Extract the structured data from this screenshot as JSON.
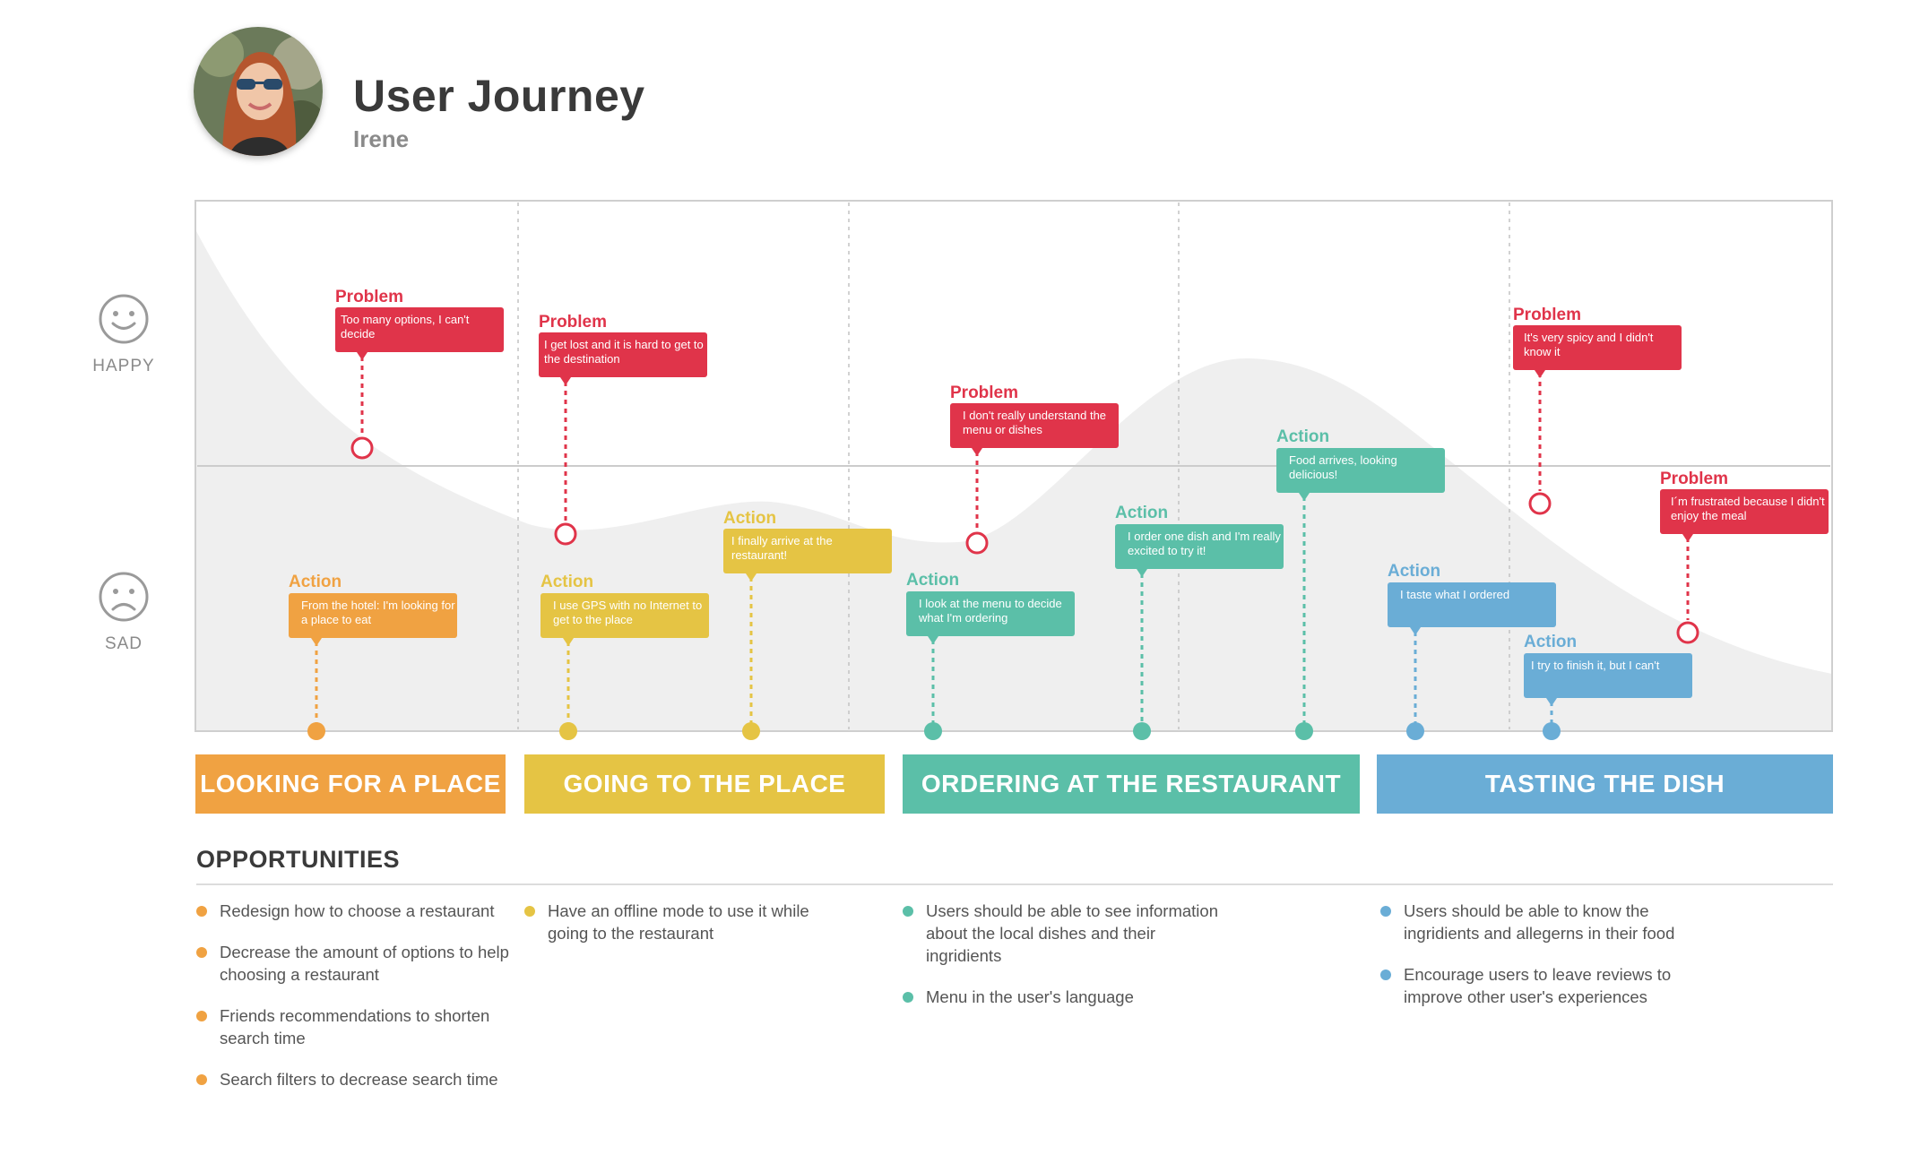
{
  "header": {
    "title": "User Journey",
    "subtitle": "Irene"
  },
  "mood": {
    "happy_label": "HAPPY",
    "sad_label": "SAD"
  },
  "colors": {
    "problem": "#e0344a",
    "orange": "#f0a242",
    "yellow": "#e5c444",
    "teal": "#5bbfa8",
    "blue": "#6aadd6",
    "curve_fill": "#efefef"
  },
  "cards": [
    {
      "kind": "Problem",
      "text": "Too many options, I can't decide",
      "color": "problem"
    },
    {
      "kind": "Problem",
      "text": "I get lost and it is hard to get to the destination",
      "color": "problem"
    },
    {
      "kind": "Problem",
      "text": "I don't really understand the menu or dishes",
      "color": "problem"
    },
    {
      "kind": "Problem",
      "text": "It's very spicy and I didn't know it",
      "color": "problem"
    },
    {
      "kind": "Problem",
      "text": "I´m frustrated because I didn't enjoy the meal",
      "color": "problem"
    },
    {
      "kind": "Action",
      "text": "From the hotel: I'm looking for a place to eat",
      "color": "orange"
    },
    {
      "kind": "Action",
      "text": "I use GPS with no Internet to get to the place",
      "color": "yellow"
    },
    {
      "kind": "Action",
      "text": "I finally arrive at the restaurant!",
      "color": "yellow"
    },
    {
      "kind": "Action",
      "text": "I look at the menu to decide what I'm ordering",
      "color": "teal"
    },
    {
      "kind": "Action",
      "text": "I order one dish and I'm really excited to try it!",
      "color": "teal"
    },
    {
      "kind": "Action",
      "text": "Food arrives, looking delicious!",
      "color": "teal"
    },
    {
      "kind": "Action",
      "text": "I taste what I ordered",
      "color": "blue"
    },
    {
      "kind": "Action",
      "text": "I try to finish it, but I can't",
      "color": "blue"
    }
  ],
  "phases": [
    {
      "label": "LOOKING FOR A PLACE",
      "color": "#f0a242"
    },
    {
      "label": "GOING TO THE PLACE",
      "color": "#e5c444"
    },
    {
      "label": "ORDERING AT THE RESTAURANT",
      "color": "#5bbfa8"
    },
    {
      "label": "TASTING THE DISH",
      "color": "#6aadd6"
    }
  ],
  "opportunities": {
    "title": "OPPORTUNITIES",
    "columns": [
      {
        "color": "#f0a242",
        "items": [
          "Redesign how to choose a restaurant",
          "Decrease the amount of options to help choosing a restaurant",
          "Friends recommendations to shorten search time",
          "Search filters to decrease search time"
        ]
      },
      {
        "color": "#e5c444",
        "items": [
          "Have an offline mode to use it while going to the restaurant"
        ]
      },
      {
        "color": "#5bbfa8",
        "items": [
          "Users should be able to see information about the local dishes and their ingridients",
          "Menu in the user's language"
        ]
      },
      {
        "color": "#6aadd6",
        "items": [
          "Users should be able to know the ingridients and allegerns in their food",
          "Encourage users to leave reviews to improve other user's experiences"
        ]
      }
    ]
  }
}
